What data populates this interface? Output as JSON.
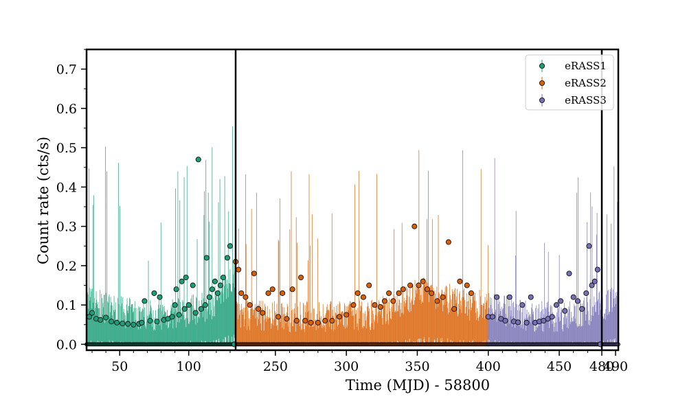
{
  "chart_data": {
    "type": "scatter",
    "xlabel": "Time (MJD) - 58800",
    "ylabel": "Count rate (cts/s)",
    "ylim": [
      -0.015,
      0.75
    ],
    "yticks": [
      0.0,
      0.1,
      0.2,
      0.3,
      0.4,
      0.5,
      0.6,
      0.7
    ],
    "ytick_labels": [
      "0.0",
      "0.1",
      "0.2",
      "0.3",
      "0.4",
      "0.5",
      "0.6",
      "0.7"
    ],
    "xticks": [
      {
        "value": 50,
        "label": "50"
      },
      {
        "value": 100,
        "label": "100"
      },
      {
        "value": 250,
        "label": "250"
      },
      {
        "value": 300,
        "label": "300"
      },
      {
        "value": 350,
        "label": "350"
      },
      {
        "value": 400,
        "label": "400"
      },
      {
        "value": 450,
        "label": "450"
      },
      {
        "value": 480,
        "label": "480"
      },
      {
        "value": 490,
        "label": "490"
      }
    ],
    "panels": [
      {
        "xlim": [
          26,
          134
        ]
      },
      {
        "xlim": [
          222,
          480
        ]
      },
      {
        "xlim": [
          480,
          492
        ]
      }
    ],
    "legend": {
      "placement": "top-right"
    },
    "series": [
      {
        "name": "eRASS1",
        "color": "#1b9e77",
        "x": [
          28,
          30,
          33,
          36,
          40,
          44,
          48,
          52,
          56,
          60,
          64,
          66,
          68,
          72,
          75,
          77,
          79,
          82,
          85,
          88,
          90,
          91,
          93,
          95,
          97,
          98,
          100,
          103,
          105,
          107,
          109,
          112,
          113,
          115,
          117,
          119,
          121,
          123,
          125,
          128,
          130,
          133
        ],
        "y": [
          0.07,
          0.08,
          0.065,
          0.062,
          0.068,
          0.058,
          0.055,
          0.053,
          0.052,
          0.05,
          0.052,
          0.055,
          0.11,
          0.06,
          0.13,
          0.058,
          0.12,
          0.062,
          0.065,
          0.07,
          0.1,
          0.14,
          0.075,
          0.16,
          0.09,
          0.17,
          0.1,
          0.15,
          0.08,
          0.47,
          0.09,
          0.1,
          0.22,
          0.12,
          0.14,
          0.16,
          0.13,
          0.15,
          0.17,
          0.22,
          0.25,
          0.0
        ]
      },
      {
        "name": "eRASS2",
        "color": "#d95f02",
        "x": [
          222,
          224,
          226,
          229,
          232,
          235,
          238,
          241,
          245,
          248,
          252,
          255,
          258,
          262,
          265,
          268,
          271,
          275,
          280,
          285,
          290,
          295,
          300,
          305,
          308,
          312,
          316,
          320,
          324,
          327,
          330,
          333,
          337,
          340,
          345,
          348,
          351,
          354,
          357,
          360,
          364,
          368,
          372,
          376,
          380,
          385,
          388
        ],
        "y": [
          0.21,
          0.19,
          0.13,
          0.12,
          0.1,
          0.18,
          0.09,
          0.08,
          0.13,
          0.14,
          0.07,
          0.13,
          0.065,
          0.14,
          0.06,
          0.17,
          0.06,
          0.055,
          0.055,
          0.06,
          0.06,
          0.07,
          0.075,
          0.1,
          0.13,
          0.12,
          0.15,
          0.1,
          0.095,
          0.11,
          0.13,
          0.11,
          0.13,
          0.14,
          0.15,
          0.3,
          0.15,
          0.16,
          0.14,
          0.13,
          0.11,
          0.12,
          0.26,
          0.09,
          0.16,
          0.15,
          0.13
        ]
      },
      {
        "name": "eRASS3",
        "color": "#7570b3",
        "x": [
          400,
          403,
          406,
          409,
          412,
          415,
          418,
          421,
          424,
          427,
          430,
          433,
          436,
          439,
          442,
          445,
          448,
          451,
          454,
          457,
          460,
          463,
          466,
          469,
          471,
          473,
          475,
          477,
          479
        ],
        "y": [
          0.07,
          0.07,
          0.12,
          0.065,
          0.06,
          0.12,
          0.058,
          0.056,
          0.1,
          0.055,
          0.12,
          0.055,
          0.058,
          0.06,
          0.065,
          0.07,
          0.1,
          0.11,
          0.085,
          0.18,
          0.12,
          0.11,
          0.09,
          0.13,
          0.25,
          0.15,
          0.16,
          0.19,
          0.0
        ]
      }
    ]
  }
}
